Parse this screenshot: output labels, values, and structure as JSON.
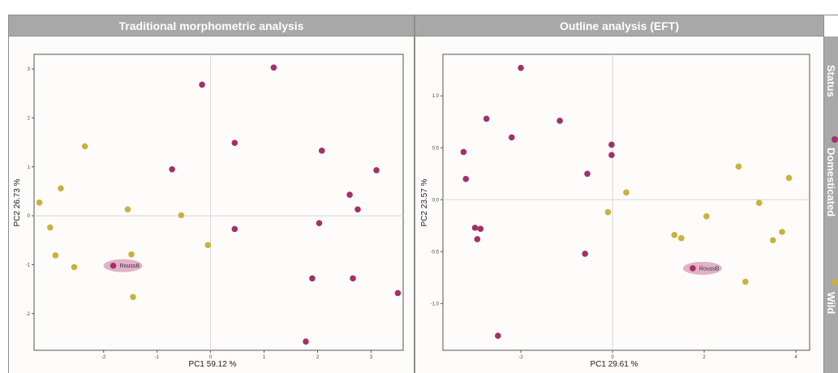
{
  "panels": [
    {
      "title": "Traditional morphometric analysis"
    },
    {
      "title": "Outline analysis (EFT)"
    }
  ],
  "legend": {
    "title": "Status",
    "items": [
      {
        "label": "Domesticated",
        "color": "#a3306b"
      },
      {
        "label": "Wild",
        "color": "#c9b23c"
      }
    ]
  },
  "colors": {
    "domesticated": "#a3306b",
    "wild": "#c9b23c",
    "highlight": "#dca5bd"
  },
  "chart_data": [
    {
      "type": "scatter",
      "title": "Traditional morphometric analysis",
      "xlabel": "PC1 59.12 %",
      "ylabel": "PC2  26.73 %",
      "xlim": [
        -3.3,
        3.6
      ],
      "ylim": [
        -2.75,
        3.3
      ],
      "xticks": [
        -2,
        -1,
        0,
        1,
        2,
        3
      ],
      "yticks": [
        -2,
        -1,
        0,
        1,
        2,
        3
      ],
      "highlight": {
        "label": "RoussB",
        "x": -1.82,
        "y": -1.02
      },
      "series": [
        {
          "name": "Domesticated",
          "points": [
            [
              -1.82,
              -1.02
            ],
            [
              -0.72,
              0.95
            ],
            [
              -0.16,
              2.68
            ],
            [
              0.45,
              1.49
            ],
            [
              0.45,
              -0.27
            ],
            [
              1.18,
              3.03
            ],
            [
              2.08,
              1.33
            ],
            [
              2.6,
              0.43
            ],
            [
              2.75,
              0.13
            ],
            [
              2.03,
              -0.15
            ],
            [
              3.1,
              0.93
            ],
            [
              1.9,
              -1.28
            ],
            [
              2.66,
              -1.28
            ],
            [
              3.5,
              -1.58
            ],
            [
              1.78,
              -2.57
            ]
          ]
        },
        {
          "name": "Wild",
          "points": [
            [
              -2.35,
              1.42
            ],
            [
              -2.8,
              0.56
            ],
            [
              -3.2,
              0.27
            ],
            [
              -3.0,
              -0.24
            ],
            [
              -2.9,
              -0.81
            ],
            [
              -2.55,
              -1.05
            ],
            [
              -1.55,
              0.13
            ],
            [
              -1.48,
              -0.79
            ],
            [
              -1.45,
              -1.66
            ],
            [
              -0.55,
              0.01
            ],
            [
              -0.05,
              -0.6
            ]
          ]
        }
      ]
    },
    {
      "type": "scatter",
      "title": "Outline analysis (EFT)",
      "xlabel": "PC1 29.61 %",
      "ylabel": "PC2 23.57 %",
      "xlim": [
        -3.7,
        4.3
      ],
      "ylim": [
        -1.45,
        1.4
      ],
      "xticks": [
        -2,
        0,
        2,
        4
      ],
      "yticks": [
        -1.0,
        -0.5,
        0.0,
        0.5,
        1.0
      ],
      "highlight": {
        "label": "RoussB",
        "x": 1.75,
        "y": -0.66
      },
      "series": [
        {
          "name": "Domesticated",
          "points": [
            [
              -2.0,
              1.27
            ],
            [
              -2.75,
              0.78
            ],
            [
              -1.15,
              0.76
            ],
            [
              -2.2,
              0.6
            ],
            [
              -3.25,
              0.46
            ],
            [
              -3.2,
              0.2
            ],
            [
              -0.02,
              0.53
            ],
            [
              -0.02,
              0.43
            ],
            [
              -0.55,
              0.25
            ],
            [
              -3.0,
              -0.27
            ],
            [
              -2.88,
              -0.28
            ],
            [
              -2.95,
              -0.38
            ],
            [
              -0.6,
              -0.52
            ],
            [
              -2.5,
              -1.31
            ],
            [
              1.75,
              -0.66
            ]
          ]
        },
        {
          "name": "Wild",
          "points": [
            [
              0.3,
              0.07
            ],
            [
              -0.1,
              -0.12
            ],
            [
              2.05,
              -0.16
            ],
            [
              1.35,
              -0.34
            ],
            [
              1.5,
              -0.37
            ],
            [
              2.75,
              0.32
            ],
            [
              3.2,
              -0.03
            ],
            [
              3.85,
              0.21
            ],
            [
              3.7,
              -0.31
            ],
            [
              3.5,
              -0.39
            ],
            [
              2.9,
              -0.79
            ]
          ]
        }
      ]
    }
  ]
}
